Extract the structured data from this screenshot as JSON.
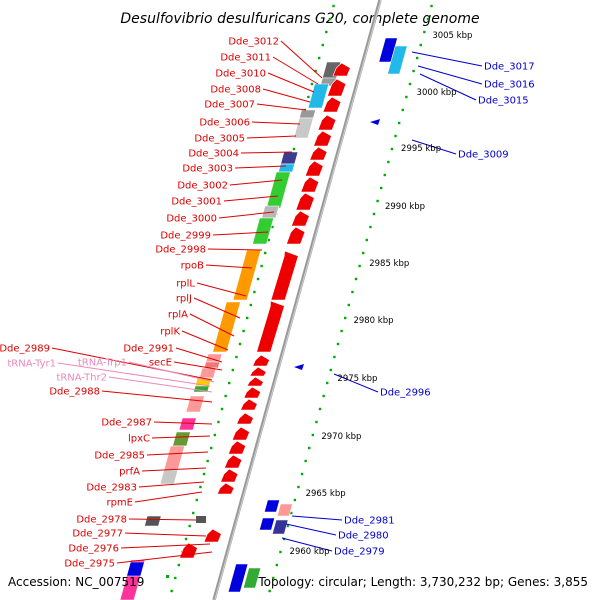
{
  "title": "Desulfovibrio desulfuricans G20, complete genome",
  "footer": {
    "accession": "Accession: NC_007519",
    "topology": "Topology: circular; Length: 3,730,232 bp; Genes: 3,855"
  },
  "colors": {
    "left_label": "#dd0000",
    "left_label_rna": "#ee88bb",
    "right_label": "#0000cc",
    "backbone": "#888888",
    "tick": "#00aa00"
  },
  "scale_labels": [
    "3005 kbp",
    "3000 kbp",
    "2995 kbp",
    "2990 kbp",
    "2985 kbp",
    "2980 kbp",
    "2975 kbp",
    "2970 kbp",
    "2965 kbp",
    "2960 kbp"
  ],
  "left_labels": [
    {
      "text": "Dde_3012",
      "type": "gene"
    },
    {
      "text": "Dde_3011",
      "type": "gene"
    },
    {
      "text": "Dde_3010",
      "type": "gene"
    },
    {
      "text": "Dde_3008",
      "type": "gene"
    },
    {
      "text": "Dde_3007",
      "type": "gene"
    },
    {
      "text": "Dde_3006",
      "type": "gene"
    },
    {
      "text": "Dde_3005",
      "type": "gene"
    },
    {
      "text": "Dde_3004",
      "type": "gene"
    },
    {
      "text": "Dde_3003",
      "type": "gene"
    },
    {
      "text": "Dde_3002",
      "type": "gene"
    },
    {
      "text": "Dde_3001",
      "type": "gene"
    },
    {
      "text": "Dde_3000",
      "type": "gene"
    },
    {
      "text": "Dde_2999",
      "type": "gene"
    },
    {
      "text": "Dde_2998",
      "type": "gene"
    },
    {
      "text": "rpoB",
      "type": "gene"
    },
    {
      "text": "rplL",
      "type": "gene"
    },
    {
      "text": "rplJ",
      "type": "gene"
    },
    {
      "text": "rplA",
      "type": "gene"
    },
    {
      "text": "rplK",
      "type": "gene"
    },
    {
      "text": "Dde_2991",
      "type": "gene"
    },
    {
      "text": "Dde_2989",
      "type": "gene"
    },
    {
      "text": "secE",
      "type": "gene"
    },
    {
      "text": "tRNA-Trp1",
      "type": "rna"
    },
    {
      "text": "tRNA-Tyr1",
      "type": "rna"
    },
    {
      "text": "tRNA-Thr2",
      "type": "rna"
    },
    {
      "text": "Dde_2988",
      "type": "gene"
    },
    {
      "text": "Dde_2987",
      "type": "gene"
    },
    {
      "text": "lpxC",
      "type": "gene"
    },
    {
      "text": "Dde_2985",
      "type": "gene"
    },
    {
      "text": "prfA",
      "type": "gene"
    },
    {
      "text": "Dde_2983",
      "type": "gene"
    },
    {
      "text": "rpmE",
      "type": "gene"
    },
    {
      "text": "Dde_2978",
      "type": "gene"
    },
    {
      "text": "Dde_2977",
      "type": "gene"
    },
    {
      "text": "Dde_2976",
      "type": "gene"
    },
    {
      "text": "Dde_2975",
      "type": "gene"
    }
  ],
  "right_labels": [
    {
      "text": "Dde_3017"
    },
    {
      "text": "Dde_3016"
    },
    {
      "text": "Dde_3015"
    },
    {
      "text": "Dde_3009"
    },
    {
      "text": "Dde_2996"
    },
    {
      "text": "Dde_2981"
    },
    {
      "text": "Dde_2980"
    },
    {
      "text": "Dde_2979"
    }
  ]
}
